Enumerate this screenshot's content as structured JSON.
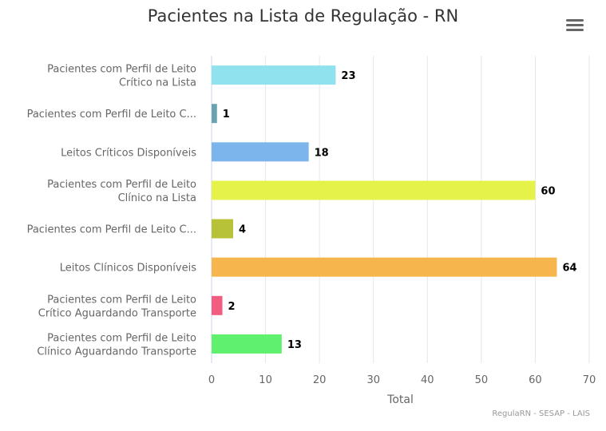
{
  "chart_data": {
    "type": "bar",
    "orientation": "horizontal",
    "title": "Pacientes na Lista de Regulação - RN",
    "xlabel": "Total",
    "xlim": [
      0,
      70
    ],
    "x_ticks": [
      "0",
      "10",
      "20",
      "30",
      "40",
      "50",
      "60",
      "70"
    ],
    "grid": "vertical",
    "data_labels": true,
    "categories": [
      [
        "Pacientes com Perfil de Leito",
        "Crítico na Lista"
      ],
      [
        "Pacientes com Perfil de Leito C..."
      ],
      [
        "Leitos Críticos Disponíveis"
      ],
      [
        "Pacientes com Perfil de Leito",
        "Clínico na Lista"
      ],
      [
        "Pacientes com Perfil de Leito C..."
      ],
      [
        "Leitos Clínicos Disponíveis"
      ],
      [
        "Pacientes com Perfil de Leito",
        "Crítico Aguardando Transporte"
      ],
      [
        "Pacientes com Perfil de Leito",
        "Clínico Aguardando Transporte"
      ]
    ],
    "values": [
      23,
      1,
      18,
      60,
      4,
      64,
      2,
      13
    ],
    "colors": [
      "#90e2ef",
      "#6aa3b0",
      "#7cb5ec",
      "#e4f24a",
      "#b8c236",
      "#f7b54d",
      "#f15c80",
      "#5ff06e"
    ]
  },
  "credits": "RegulaRN - SESAP - LAIS",
  "menu_icon": "hamburger-menu-icon"
}
